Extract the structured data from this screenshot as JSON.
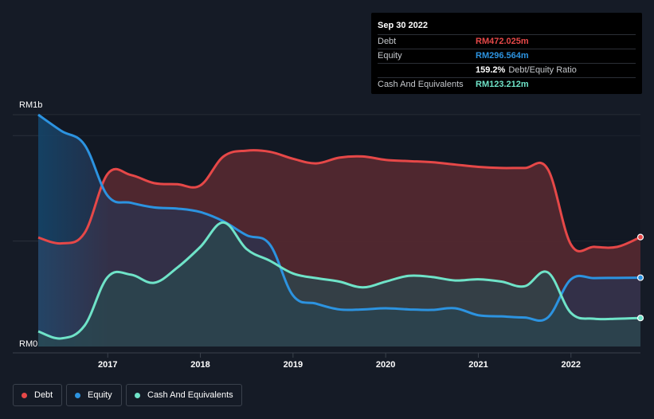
{
  "tooltip": {
    "date": "Sep 30 2022",
    "debt_label": "Debt",
    "debt_value": "RM472.025m",
    "equity_label": "Equity",
    "equity_value": "RM296.564m",
    "ratio_value": "159.2%",
    "ratio_label": "Debt/Equity Ratio",
    "cash_label": "Cash And Equivalents",
    "cash_value": "RM123.212m"
  },
  "legend": {
    "debt": "Debt",
    "equity": "Equity",
    "cash": "Cash And Equivalents"
  },
  "colors": {
    "debt": "#e64848",
    "equity": "#2c93e0",
    "cash": "#6fe3c8",
    "background": "#151b26"
  },
  "chart_data": {
    "type": "area",
    "title": "",
    "xlabel": "",
    "ylabel": "",
    "y_top_label": "RM1b",
    "y_bottom_label": "RM0",
    "ylim": [
      0,
      1000
    ],
    "xlim": [
      2016.25,
      2022.75
    ],
    "x_ticks": [
      {
        "value": 2017,
        "label": "2017"
      },
      {
        "value": 2018,
        "label": "2018"
      },
      {
        "value": 2019,
        "label": "2019"
      },
      {
        "value": 2020,
        "label": "2020"
      },
      {
        "value": 2021,
        "label": "2021"
      },
      {
        "value": 2022,
        "label": "2022"
      }
    ],
    "series": [
      {
        "name": "Debt",
        "key": "debt",
        "x": [
          2016.25,
          2016.5,
          2016.75,
          2017.0,
          2017.25,
          2017.5,
          2017.75,
          2018.0,
          2018.25,
          2018.5,
          2018.75,
          2019.0,
          2019.25,
          2019.5,
          2019.75,
          2020.0,
          2020.25,
          2020.5,
          2020.75,
          2021.0,
          2021.25,
          2021.5,
          2021.75,
          2022.0,
          2022.25,
          2022.5,
          2022.75
        ],
        "values": [
          470,
          445,
          490,
          745,
          740,
          705,
          700,
          695,
          820,
          845,
          840,
          810,
          790,
          815,
          820,
          805,
          800,
          795,
          785,
          775,
          770,
          770,
          765,
          440,
          430,
          430,
          472
        ]
      },
      {
        "name": "Equity",
        "key": "equity",
        "x": [
          2016.25,
          2016.5,
          2016.75,
          2017.0,
          2017.25,
          2017.5,
          2017.75,
          2018.0,
          2018.25,
          2018.5,
          2018.75,
          2019.0,
          2019.25,
          2019.5,
          2019.75,
          2020.0,
          2020.25,
          2020.5,
          2020.75,
          2021.0,
          2021.25,
          2021.5,
          2021.75,
          2022.0,
          2022.25,
          2022.5,
          2022.75
        ],
        "values": [
          1000,
          930,
          870,
          650,
          620,
          600,
          595,
          580,
          540,
          480,
          440,
          220,
          185,
          160,
          160,
          165,
          160,
          158,
          165,
          135,
          130,
          125,
          125,
          290,
          295,
          296,
          297
        ]
      },
      {
        "name": "Cash And Equivalents",
        "key": "cash",
        "x": [
          2016.25,
          2016.5,
          2016.75,
          2017.0,
          2017.25,
          2017.5,
          2017.75,
          2018.0,
          2018.25,
          2018.5,
          2018.75,
          2019.0,
          2019.25,
          2019.5,
          2019.75,
          2020.0,
          2020.25,
          2020.5,
          2020.75,
          2021.0,
          2021.25,
          2021.5,
          2021.75,
          2022.0,
          2022.25,
          2022.5,
          2022.75
        ],
        "values": [
          65,
          35,
          90,
          300,
          310,
          275,
          340,
          430,
          535,
          420,
          370,
          315,
          295,
          280,
          255,
          280,
          305,
          300,
          285,
          290,
          280,
          260,
          320,
          145,
          120,
          120,
          123
        ]
      }
    ]
  }
}
